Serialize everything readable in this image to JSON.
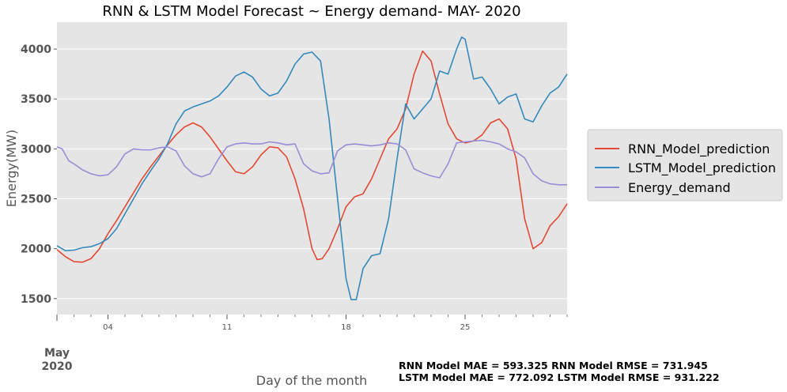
{
  "chart_data": {
    "type": "line",
    "title": "RNN & LSTM Model Forecast ~ Energy demand- MAY- 2020",
    "xlabel": "Day of the month",
    "ylabel": "Energy(MW)",
    "month_label": "May",
    "year_label": "2020",
    "xlim": [
      1,
      31
    ],
    "ylim": [
      1340,
      4270
    ],
    "yticks": [
      1500,
      2000,
      2500,
      3000,
      3500,
      4000
    ],
    "xticks": [
      {
        "day": 4,
        "label": "04"
      },
      {
        "day": 11,
        "label": "11"
      },
      {
        "day": 18,
        "label": "18"
      },
      {
        "day": 25,
        "label": "25"
      }
    ],
    "grid": true,
    "legend_position": "right",
    "metrics": [
      "RNN Model MAE = 593.325 RNN Model RMSE = 731.945",
      "LSTM Model MAE = 772.092 LSTM Model RMSE = 931.222"
    ],
    "series": [
      {
        "name": "RNN_Model_prediction",
        "color": "#E24A33",
        "points": [
          [
            1,
            1990
          ],
          [
            1.5,
            1920
          ],
          [
            2,
            1870
          ],
          [
            2.5,
            1865
          ],
          [
            3,
            1900
          ],
          [
            3.5,
            2000
          ],
          [
            4,
            2150
          ],
          [
            4.5,
            2280
          ],
          [
            5,
            2420
          ],
          [
            5.5,
            2560
          ],
          [
            6,
            2700
          ],
          [
            6.5,
            2820
          ],
          [
            7,
            2930
          ],
          [
            7.5,
            3040
          ],
          [
            8,
            3140
          ],
          [
            8.5,
            3220
          ],
          [
            9,
            3260
          ],
          [
            9.5,
            3220
          ],
          [
            10,
            3120
          ],
          [
            10.5,
            3000
          ],
          [
            11,
            2880
          ],
          [
            11.5,
            2770
          ],
          [
            12,
            2750
          ],
          [
            12.5,
            2820
          ],
          [
            13,
            2940
          ],
          [
            13.5,
            3020
          ],
          [
            14,
            3010
          ],
          [
            14.5,
            2920
          ],
          [
            15,
            2700
          ],
          [
            15.5,
            2400
          ],
          [
            16,
            2000
          ],
          [
            16.3,
            1890
          ],
          [
            16.6,
            1900
          ],
          [
            17,
            2000
          ],
          [
            17.5,
            2200
          ],
          [
            18,
            2420
          ],
          [
            18.5,
            2520
          ],
          [
            19,
            2550
          ],
          [
            19.5,
            2700
          ],
          [
            20,
            2900
          ],
          [
            20.5,
            3100
          ],
          [
            21,
            3200
          ],
          [
            21.5,
            3400
          ],
          [
            22,
            3750
          ],
          [
            22.5,
            3980
          ],
          [
            23,
            3880
          ],
          [
            23.5,
            3550
          ],
          [
            24,
            3250
          ],
          [
            24.5,
            3100
          ],
          [
            25,
            3060
          ],
          [
            25.5,
            3080
          ],
          [
            26,
            3140
          ],
          [
            26.5,
            3260
          ],
          [
            27,
            3300
          ],
          [
            27.5,
            3200
          ],
          [
            28,
            2900
          ],
          [
            28.5,
            2300
          ],
          [
            29,
            2000
          ],
          [
            29.5,
            2060
          ],
          [
            30,
            2230
          ],
          [
            30.5,
            2320
          ],
          [
            31,
            2450
          ]
        ]
      },
      {
        "name": "LSTM_Model_prediction",
        "color": "#348ABD",
        "points": [
          [
            1,
            2030
          ],
          [
            1.5,
            1980
          ],
          [
            2,
            1985
          ],
          [
            2.5,
            2010
          ],
          [
            3,
            2020
          ],
          [
            3.5,
            2050
          ],
          [
            4,
            2100
          ],
          [
            4.5,
            2200
          ],
          [
            5,
            2350
          ],
          [
            5.5,
            2500
          ],
          [
            6,
            2650
          ],
          [
            6.5,
            2780
          ],
          [
            7,
            2900
          ],
          [
            7.5,
            3050
          ],
          [
            8,
            3250
          ],
          [
            8.5,
            3380
          ],
          [
            9,
            3420
          ],
          [
            9.5,
            3450
          ],
          [
            10,
            3480
          ],
          [
            10.5,
            3530
          ],
          [
            11,
            3620
          ],
          [
            11.5,
            3730
          ],
          [
            12,
            3770
          ],
          [
            12.5,
            3720
          ],
          [
            13,
            3600
          ],
          [
            13.5,
            3530
          ],
          [
            14,
            3560
          ],
          [
            14.5,
            3680
          ],
          [
            15,
            3850
          ],
          [
            15.5,
            3950
          ],
          [
            16,
            3970
          ],
          [
            16.5,
            3880
          ],
          [
            17,
            3300
          ],
          [
            17.5,
            2500
          ],
          [
            18,
            1700
          ],
          [
            18.3,
            1490
          ],
          [
            18.6,
            1490
          ],
          [
            19,
            1800
          ],
          [
            19.5,
            1930
          ],
          [
            20,
            1950
          ],
          [
            20.5,
            2300
          ],
          [
            21,
            2900
          ],
          [
            21.5,
            3450
          ],
          [
            22,
            3300
          ],
          [
            22.5,
            3400
          ],
          [
            23,
            3500
          ],
          [
            23.5,
            3780
          ],
          [
            24,
            3750
          ],
          [
            24.5,
            4000
          ],
          [
            24.8,
            4120
          ],
          [
            25,
            4100
          ],
          [
            25.5,
            3700
          ],
          [
            26,
            3720
          ],
          [
            26.5,
            3600
          ],
          [
            27,
            3450
          ],
          [
            27.5,
            3520
          ],
          [
            28,
            3550
          ],
          [
            28.5,
            3300
          ],
          [
            29,
            3270
          ],
          [
            29.5,
            3430
          ],
          [
            30,
            3560
          ],
          [
            30.5,
            3620
          ],
          [
            31,
            3750
          ]
        ]
      },
      {
        "name": "Energy_demand",
        "color": "#988ED5",
        "points": [
          [
            1,
            3020
          ],
          [
            1.3,
            3000
          ],
          [
            1.7,
            2880
          ],
          [
            2,
            2850
          ],
          [
            2.5,
            2790
          ],
          [
            3,
            2750
          ],
          [
            3.5,
            2730
          ],
          [
            4,
            2740
          ],
          [
            4.5,
            2820
          ],
          [
            5,
            2950
          ],
          [
            5.5,
            3000
          ],
          [
            6,
            2990
          ],
          [
            6.5,
            2990
          ],
          [
            7,
            3010
          ],
          [
            7.5,
            3020
          ],
          [
            8,
            2980
          ],
          [
            8.5,
            2830
          ],
          [
            9,
            2750
          ],
          [
            9.5,
            2720
          ],
          [
            10,
            2750
          ],
          [
            10.5,
            2900
          ],
          [
            11,
            3020
          ],
          [
            11.5,
            3050
          ],
          [
            12,
            3060
          ],
          [
            12.5,
            3050
          ],
          [
            13,
            3050
          ],
          [
            13.5,
            3070
          ],
          [
            14,
            3060
          ],
          [
            14.5,
            3040
          ],
          [
            15,
            3050
          ],
          [
            15.5,
            2850
          ],
          [
            16,
            2780
          ],
          [
            16.5,
            2750
          ],
          [
            17,
            2760
          ],
          [
            17.5,
            2980
          ],
          [
            18,
            3040
          ],
          [
            18.5,
            3050
          ],
          [
            19,
            3040
          ],
          [
            19.5,
            3030
          ],
          [
            20,
            3040
          ],
          [
            20.5,
            3060
          ],
          [
            21,
            3050
          ],
          [
            21.5,
            2990
          ],
          [
            22,
            2800
          ],
          [
            22.5,
            2760
          ],
          [
            23,
            2730
          ],
          [
            23.5,
            2710
          ],
          [
            24,
            2850
          ],
          [
            24.5,
            3060
          ],
          [
            25,
            3070
          ],
          [
            25.5,
            3080
          ],
          [
            26,
            3085
          ],
          [
            26.5,
            3070
          ],
          [
            27,
            3050
          ],
          [
            27.5,
            3000
          ],
          [
            28,
            2970
          ],
          [
            28.5,
            2910
          ],
          [
            29,
            2750
          ],
          [
            29.5,
            2680
          ],
          [
            30,
            2650
          ],
          [
            30.5,
            2640
          ],
          [
            31,
            2640
          ]
        ]
      }
    ]
  }
}
